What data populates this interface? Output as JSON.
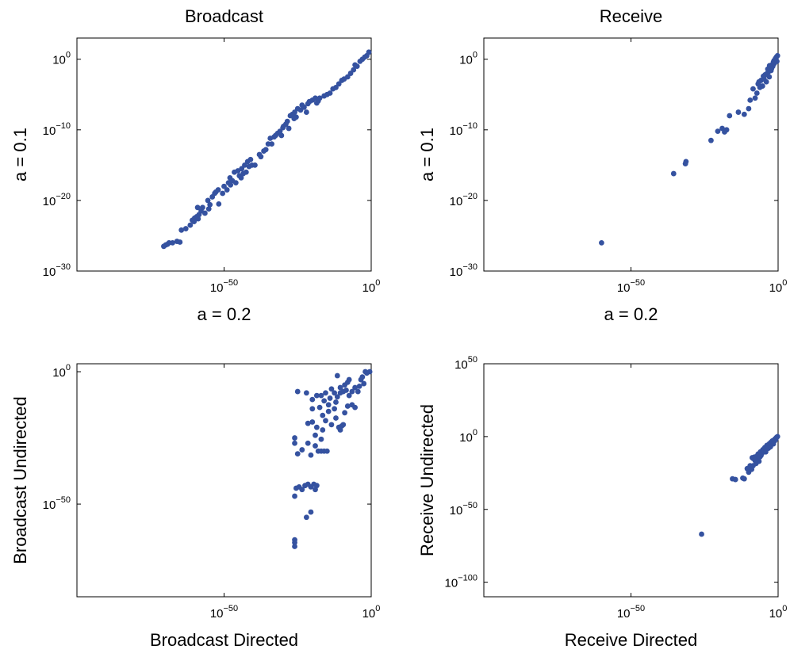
{
  "chart_data": [
    {
      "type": "scatter",
      "title": "Broadcast",
      "xlabel": "a = 0.2",
      "ylabel": "a = 0.1",
      "xscale": "log",
      "yscale": "log",
      "xlim_exp": [
        -100,
        0
      ],
      "ylim_exp": [
        -30,
        3
      ],
      "xticks": [
        {
          "exp": -50,
          "base": "10",
          "sup": "−50"
        },
        {
          "exp": 0,
          "base": "10",
          "sup": "0"
        }
      ],
      "yticks": [
        {
          "exp": -30,
          "base": "10",
          "sup": "−30"
        },
        {
          "exp": -20,
          "base": "10",
          "sup": "−20"
        },
        {
          "exp": -10,
          "base": "10",
          "sup": "−10"
        },
        {
          "exp": 0,
          "base": "10",
          "sup": "0"
        }
      ],
      "marker_color": "#3552a0",
      "points_log10": [
        [
          -70.5,
          -26.5
        ],
        [
          -69.8,
          -26.3
        ],
        [
          -69.2,
          -26.2
        ],
        [
          -68.7,
          -26.0
        ],
        [
          -67.5,
          -26.0
        ],
        [
          -66.0,
          -25.8
        ],
        [
          -65.0,
          -25.9
        ],
        [
          -61.5,
          -23.5
        ],
        [
          -60.8,
          -22.8
        ],
        [
          -60.0,
          -22.5
        ],
        [
          -59.3,
          -22.3
        ],
        [
          -58.5,
          -22.0
        ],
        [
          -58.8,
          -22.6
        ],
        [
          -57.8,
          -21.5
        ],
        [
          -57.3,
          -21.0
        ],
        [
          -59.0,
          -21.0
        ],
        [
          -56.5,
          -21.8
        ],
        [
          -55.5,
          -20.0
        ],
        [
          -54.8,
          -20.6
        ],
        [
          -54.0,
          -19.5
        ],
        [
          -53.2,
          -19.0
        ],
        [
          -52.8,
          -18.8
        ],
        [
          -52.0,
          -18.5
        ],
        [
          -51.8,
          -20.5
        ],
        [
          -50.5,
          -19.0
        ],
        [
          -50.0,
          -18.0
        ],
        [
          -49.0,
          -18.5
        ],
        [
          -48.5,
          -17.5
        ],
        [
          -48.0,
          -16.8
        ],
        [
          -47.2,
          -17.2
        ],
        [
          -46.5,
          -16.0
        ],
        [
          -46.0,
          -17.5
        ],
        [
          -45.3,
          -15.8
        ],
        [
          -44.8,
          -16.5
        ],
        [
          -44.0,
          -15.5
        ],
        [
          -43.5,
          -16.2
        ],
        [
          -43.0,
          -15.0
        ],
        [
          -42.5,
          -16.0
        ],
        [
          -42.0,
          -14.5
        ],
        [
          -41.5,
          -15.2
        ],
        [
          -41.0,
          -14.2
        ],
        [
          -40.5,
          -15.0
        ],
        [
          -39.5,
          -15.0
        ],
        [
          -37.5,
          -13.8
        ],
        [
          -36.5,
          -13.0
        ],
        [
          -35.8,
          -12.8
        ],
        [
          -35.0,
          -12.0
        ],
        [
          -34.3,
          -11.2
        ],
        [
          -33.8,
          -12.0
        ],
        [
          -33.0,
          -11.0
        ],
        [
          -32.5,
          -10.8
        ],
        [
          -31.8,
          -10.5
        ],
        [
          -31.0,
          -10.2
        ],
        [
          -30.5,
          -10.8
        ],
        [
          -29.8,
          -9.5
        ],
        [
          -29.0,
          -9.2
        ],
        [
          -28.5,
          -8.8
        ],
        [
          -28.0,
          -9.8
        ],
        [
          -27.5,
          -8.0
        ],
        [
          -26.8,
          -7.8
        ],
        [
          -26.0,
          -7.5
        ],
        [
          -25.5,
          -8.2
        ],
        [
          -25.0,
          -7.0
        ],
        [
          -24.0,
          -7.2
        ],
        [
          -23.5,
          -6.5
        ],
        [
          -22.8,
          -6.8
        ],
        [
          -22.0,
          -7.5
        ],
        [
          -21.0,
          -6.0
        ],
        [
          -20.0,
          -5.8
        ],
        [
          -19.0,
          -5.5
        ],
        [
          -18.5,
          -6.2
        ],
        [
          -17.5,
          -5.5
        ],
        [
          -16.0,
          -5.2
        ],
        [
          -15.0,
          -5.0
        ],
        [
          -14.0,
          -4.8
        ],
        [
          -13.0,
          -4.2
        ],
        [
          -12.0,
          -4.0
        ],
        [
          -10.0,
          -3.0
        ],
        [
          -9.2,
          -2.8
        ],
        [
          -8.0,
          -2.5
        ],
        [
          -7.0,
          -2.0
        ],
        [
          -6.0,
          -1.5
        ],
        [
          -4.8,
          -1.0
        ],
        [
          -3.8,
          -0.3
        ],
        [
          -3.0,
          0.0
        ],
        [
          -2.2,
          0.3
        ],
        [
          -1.5,
          0.5
        ],
        [
          -0.8,
          1.0
        ],
        [
          -64.5,
          -24.2
        ],
        [
          -63.0,
          -24.0
        ],
        [
          -60.2,
          -23.0
        ],
        [
          -55.2,
          -21.2
        ],
        [
          -47.8,
          -17.8
        ],
        [
          -44.2,
          -16.8
        ],
        [
          -38.0,
          -13.5
        ],
        [
          -30.0,
          -9.7
        ],
        [
          -26.2,
          -8.4
        ],
        [
          -21.5,
          -6.3
        ],
        [
          -18.0,
          -5.9
        ],
        [
          -11.0,
          -3.5
        ],
        [
          -5.5,
          -0.8
        ]
      ]
    },
    {
      "type": "scatter",
      "title": "Receive",
      "xlabel": "a = 0.2",
      "ylabel": "a = 0.1",
      "xscale": "log",
      "yscale": "log",
      "xlim_exp": [
        -100,
        0
      ],
      "ylim_exp": [
        -30,
        3
      ],
      "xticks": [
        {
          "exp": -50,
          "base": "10",
          "sup": "−50"
        },
        {
          "exp": 0,
          "base": "10",
          "sup": "0"
        }
      ],
      "yticks": [
        {
          "exp": -30,
          "base": "10",
          "sup": "−30"
        },
        {
          "exp": -20,
          "base": "10",
          "sup": "−20"
        },
        {
          "exp": -10,
          "base": "10",
          "sup": "−10"
        },
        {
          "exp": 0,
          "base": "10",
          "sup": "0"
        }
      ],
      "marker_color": "#3552a0",
      "points_log10": [
        [
          -60.0,
          -26.0
        ],
        [
          -35.5,
          -16.2
        ],
        [
          -31.5,
          -14.8
        ],
        [
          -31.3,
          -14.5
        ],
        [
          -22.8,
          -11.5
        ],
        [
          -20.5,
          -10.2
        ],
        [
          -19.0,
          -9.8
        ],
        [
          -18.2,
          -10.3
        ],
        [
          -17.5,
          -10.0
        ],
        [
          -16.5,
          -8.0
        ],
        [
          -13.5,
          -7.5
        ],
        [
          -11.5,
          -7.8
        ],
        [
          -10.0,
          -7.0
        ],
        [
          -9.5,
          -5.8
        ],
        [
          -8.5,
          -4.2
        ],
        [
          -7.8,
          -5.5
        ],
        [
          -7.2,
          -4.8
        ],
        [
          -6.8,
          -3.5
        ],
        [
          -6.2,
          -4.0
        ],
        [
          -5.8,
          -3.0
        ],
        [
          -5.3,
          -3.8
        ],
        [
          -4.8,
          -2.8
        ],
        [
          -4.4,
          -2.2
        ],
        [
          -4.0,
          -3.2
        ],
        [
          -3.7,
          -2.0
        ],
        [
          -3.3,
          -1.8
        ],
        [
          -3.0,
          -2.5
        ],
        [
          -2.7,
          -1.2
        ],
        [
          -2.4,
          -1.6
        ],
        [
          -2.1,
          -0.8
        ],
        [
          -1.8,
          -1.0
        ],
        [
          -1.6,
          -0.4
        ],
        [
          -1.3,
          -0.6
        ],
        [
          -1.1,
          -0.1
        ],
        [
          -0.8,
          -0.2
        ],
        [
          -0.6,
          0.3
        ],
        [
          -0.4,
          -0.3
        ],
        [
          -0.2,
          0.5
        ],
        [
          -6.5,
          -3.2
        ],
        [
          -5.0,
          -2.4
        ],
        [
          -3.5,
          -1.4
        ],
        [
          -2.9,
          -0.9
        ],
        [
          -2.2,
          -1.3
        ],
        [
          -1.4,
          -0.2
        ],
        [
          -0.9,
          0.1
        ]
      ]
    },
    {
      "type": "scatter",
      "title": "",
      "xlabel": "Broadcast Directed",
      "ylabel": "Broadcast Undirected",
      "xscale": "log",
      "yscale": "log",
      "xlim_exp": [
        -100,
        0
      ],
      "ylim_exp": [
        -85,
        3
      ],
      "xticks": [
        {
          "exp": -50,
          "base": "10",
          "sup": "−50"
        },
        {
          "exp": 0,
          "base": "10",
          "sup": "0"
        }
      ],
      "yticks": [
        {
          "exp": -50,
          "base": "10",
          "sup": "−50"
        },
        {
          "exp": 0,
          "base": "10",
          "sup": "0"
        }
      ],
      "marker_color": "#3552a0",
      "points_log10": [
        [
          -26.0,
          -63.5
        ],
        [
          -26.0,
          -64.5
        ],
        [
          -26.0,
          -66.0
        ],
        [
          -22.0,
          -55.0
        ],
        [
          -20.5,
          -53.0
        ],
        [
          -26.0,
          -47.0
        ],
        [
          -25.5,
          -44.0
        ],
        [
          -24.5,
          -43.5
        ],
        [
          -23.5,
          -44.5
        ],
        [
          -22.5,
          -43.0
        ],
        [
          -21.5,
          -42.5
        ],
        [
          -20.5,
          -43.5
        ],
        [
          -19.5,
          -42.5
        ],
        [
          -19.0,
          -44.5
        ],
        [
          -18.5,
          -43.0
        ],
        [
          -25.0,
          -31.0
        ],
        [
          -23.5,
          -29.5
        ],
        [
          -21.5,
          -27.0
        ],
        [
          -20.5,
          -31.5
        ],
        [
          -19.0,
          -28.0
        ],
        [
          -18.0,
          -30.0
        ],
        [
          -17.0,
          -30.0
        ],
        [
          -16.0,
          -30.0
        ],
        [
          -15.0,
          -30.0
        ],
        [
          -26.0,
          -25.0
        ],
        [
          -26.0,
          -27.0
        ],
        [
          -21.5,
          -19.5
        ],
        [
          -20.0,
          -19.0
        ],
        [
          -19.0,
          -24.0
        ],
        [
          -18.5,
          -21.0
        ],
        [
          -17.0,
          -25.5
        ],
        [
          -16.5,
          -22.0
        ],
        [
          -15.5,
          -18.5
        ],
        [
          -14.5,
          -15.0
        ],
        [
          -13.5,
          -20.0
        ],
        [
          -12.5,
          -14.0
        ],
        [
          -12.0,
          -17.5
        ],
        [
          -11.0,
          -21.0
        ],
        [
          -10.5,
          -22.0
        ],
        [
          -10.0,
          -20.5
        ],
        [
          -9.5,
          -20.0
        ],
        [
          -9.0,
          -15.5
        ],
        [
          -13.5,
          -6.5
        ],
        [
          -12.5,
          -8.0
        ],
        [
          -11.5,
          -9.5
        ],
        [
          -10.5,
          -8.0
        ],
        [
          -9.5,
          -7.5
        ],
        [
          -8.5,
          -7.0
        ],
        [
          -7.5,
          -9.0
        ],
        [
          -6.5,
          -7.5
        ],
        [
          -5.5,
          -6.0
        ],
        [
          -4.5,
          -7.5
        ],
        [
          -8.0,
          -13.0
        ],
        [
          -6.5,
          -12.5
        ],
        [
          -5.5,
          -13.5
        ],
        [
          -4.0,
          -5.5
        ],
        [
          -3.5,
          -3.0
        ],
        [
          -2.5,
          -4.5
        ],
        [
          -1.5,
          -0.5
        ],
        [
          -0.5,
          0.0
        ],
        [
          -2.0,
          0.0
        ],
        [
          -3.0,
          -2.0
        ],
        [
          -7.5,
          -3.0
        ],
        [
          -11.5,
          -1.5
        ],
        [
          -25.0,
          -7.5
        ],
        [
          -22.0,
          -8.0
        ],
        [
          -20.0,
          -10.5
        ],
        [
          -18.5,
          -9.0
        ],
        [
          -17.0,
          -9.0
        ],
        [
          -16.0,
          -11.0
        ],
        [
          -15.5,
          -8.0
        ],
        [
          -14.5,
          -12.5
        ],
        [
          -20.0,
          -14.0
        ],
        [
          -17.5,
          -13.5
        ],
        [
          -16.5,
          -16.5
        ],
        [
          -14.0,
          -10.0
        ],
        [
          -12.0,
          -11.5
        ],
        [
          -10.5,
          -6.0
        ],
        [
          -9.0,
          -5.0
        ],
        [
          -8.0,
          -4.0
        ]
      ]
    },
    {
      "type": "scatter",
      "title": "",
      "xlabel": "Receive Directed",
      "ylabel": "Receive Undirected",
      "xscale": "log",
      "yscale": "log",
      "xlim_exp": [
        -100,
        0
      ],
      "ylim_exp": [
        -110,
        50
      ],
      "xticks": [
        {
          "exp": -50,
          "base": "10",
          "sup": "−50"
        },
        {
          "exp": 0,
          "base": "10",
          "sup": "0"
        }
      ],
      "yticks": [
        {
          "exp": -100,
          "base": "10",
          "sup": "−100"
        },
        {
          "exp": -50,
          "base": "10",
          "sup": "−50"
        },
        {
          "exp": 0,
          "base": "10",
          "sup": "0"
        },
        {
          "exp": 50,
          "base": "10",
          "sup": "50"
        }
      ],
      "marker_color": "#3552a0",
      "points_log10": [
        [
          -26.0,
          -67.0
        ],
        [
          -15.5,
          -29.0
        ],
        [
          -14.5,
          -29.5
        ],
        [
          -12.0,
          -28.5
        ],
        [
          -11.5,
          -29.0
        ],
        [
          -10.0,
          -24.5
        ],
        [
          -9.8,
          -23.0
        ],
        [
          -9.5,
          -20.0
        ],
        [
          -9.0,
          -22.5
        ],
        [
          -8.8,
          -14.5
        ],
        [
          -8.5,
          -15.0
        ],
        [
          -8.0,
          -14.0
        ],
        [
          -7.5,
          -15.0
        ],
        [
          -7.0,
          -13.0
        ],
        [
          -8.5,
          -20.0
        ],
        [
          -7.5,
          -18.5
        ],
        [
          -6.8,
          -12.0
        ],
        [
          -6.5,
          -17.0
        ],
        [
          -6.0,
          -10.5
        ],
        [
          -5.5,
          -11.5
        ],
        [
          -5.2,
          -9.0
        ],
        [
          -4.8,
          -10.0
        ],
        [
          -4.5,
          -7.5
        ],
        [
          -4.0,
          -8.5
        ],
        [
          -3.8,
          -6.0
        ],
        [
          -3.5,
          -7.0
        ],
        [
          -3.0,
          -5.0
        ],
        [
          -2.8,
          -6.0
        ],
        [
          -2.5,
          -4.0
        ],
        [
          -2.2,
          -5.0
        ],
        [
          -2.0,
          -3.0
        ],
        [
          -1.8,
          -4.0
        ],
        [
          -1.5,
          -2.5
        ],
        [
          -1.2,
          -3.0
        ],
        [
          -1.0,
          -1.5
        ],
        [
          -0.8,
          -2.0
        ],
        [
          -0.5,
          -0.5
        ],
        [
          -0.2,
          0.0
        ],
        [
          -6.2,
          -14.0
        ],
        [
          -5.8,
          -13.0
        ],
        [
          -4.2,
          -10.5
        ],
        [
          -3.3,
          -8.0
        ],
        [
          -2.6,
          -7.0
        ],
        [
          -1.6,
          -5.0
        ],
        [
          -7.8,
          -16.5
        ],
        [
          -10.5,
          -22.0
        ]
      ]
    }
  ]
}
